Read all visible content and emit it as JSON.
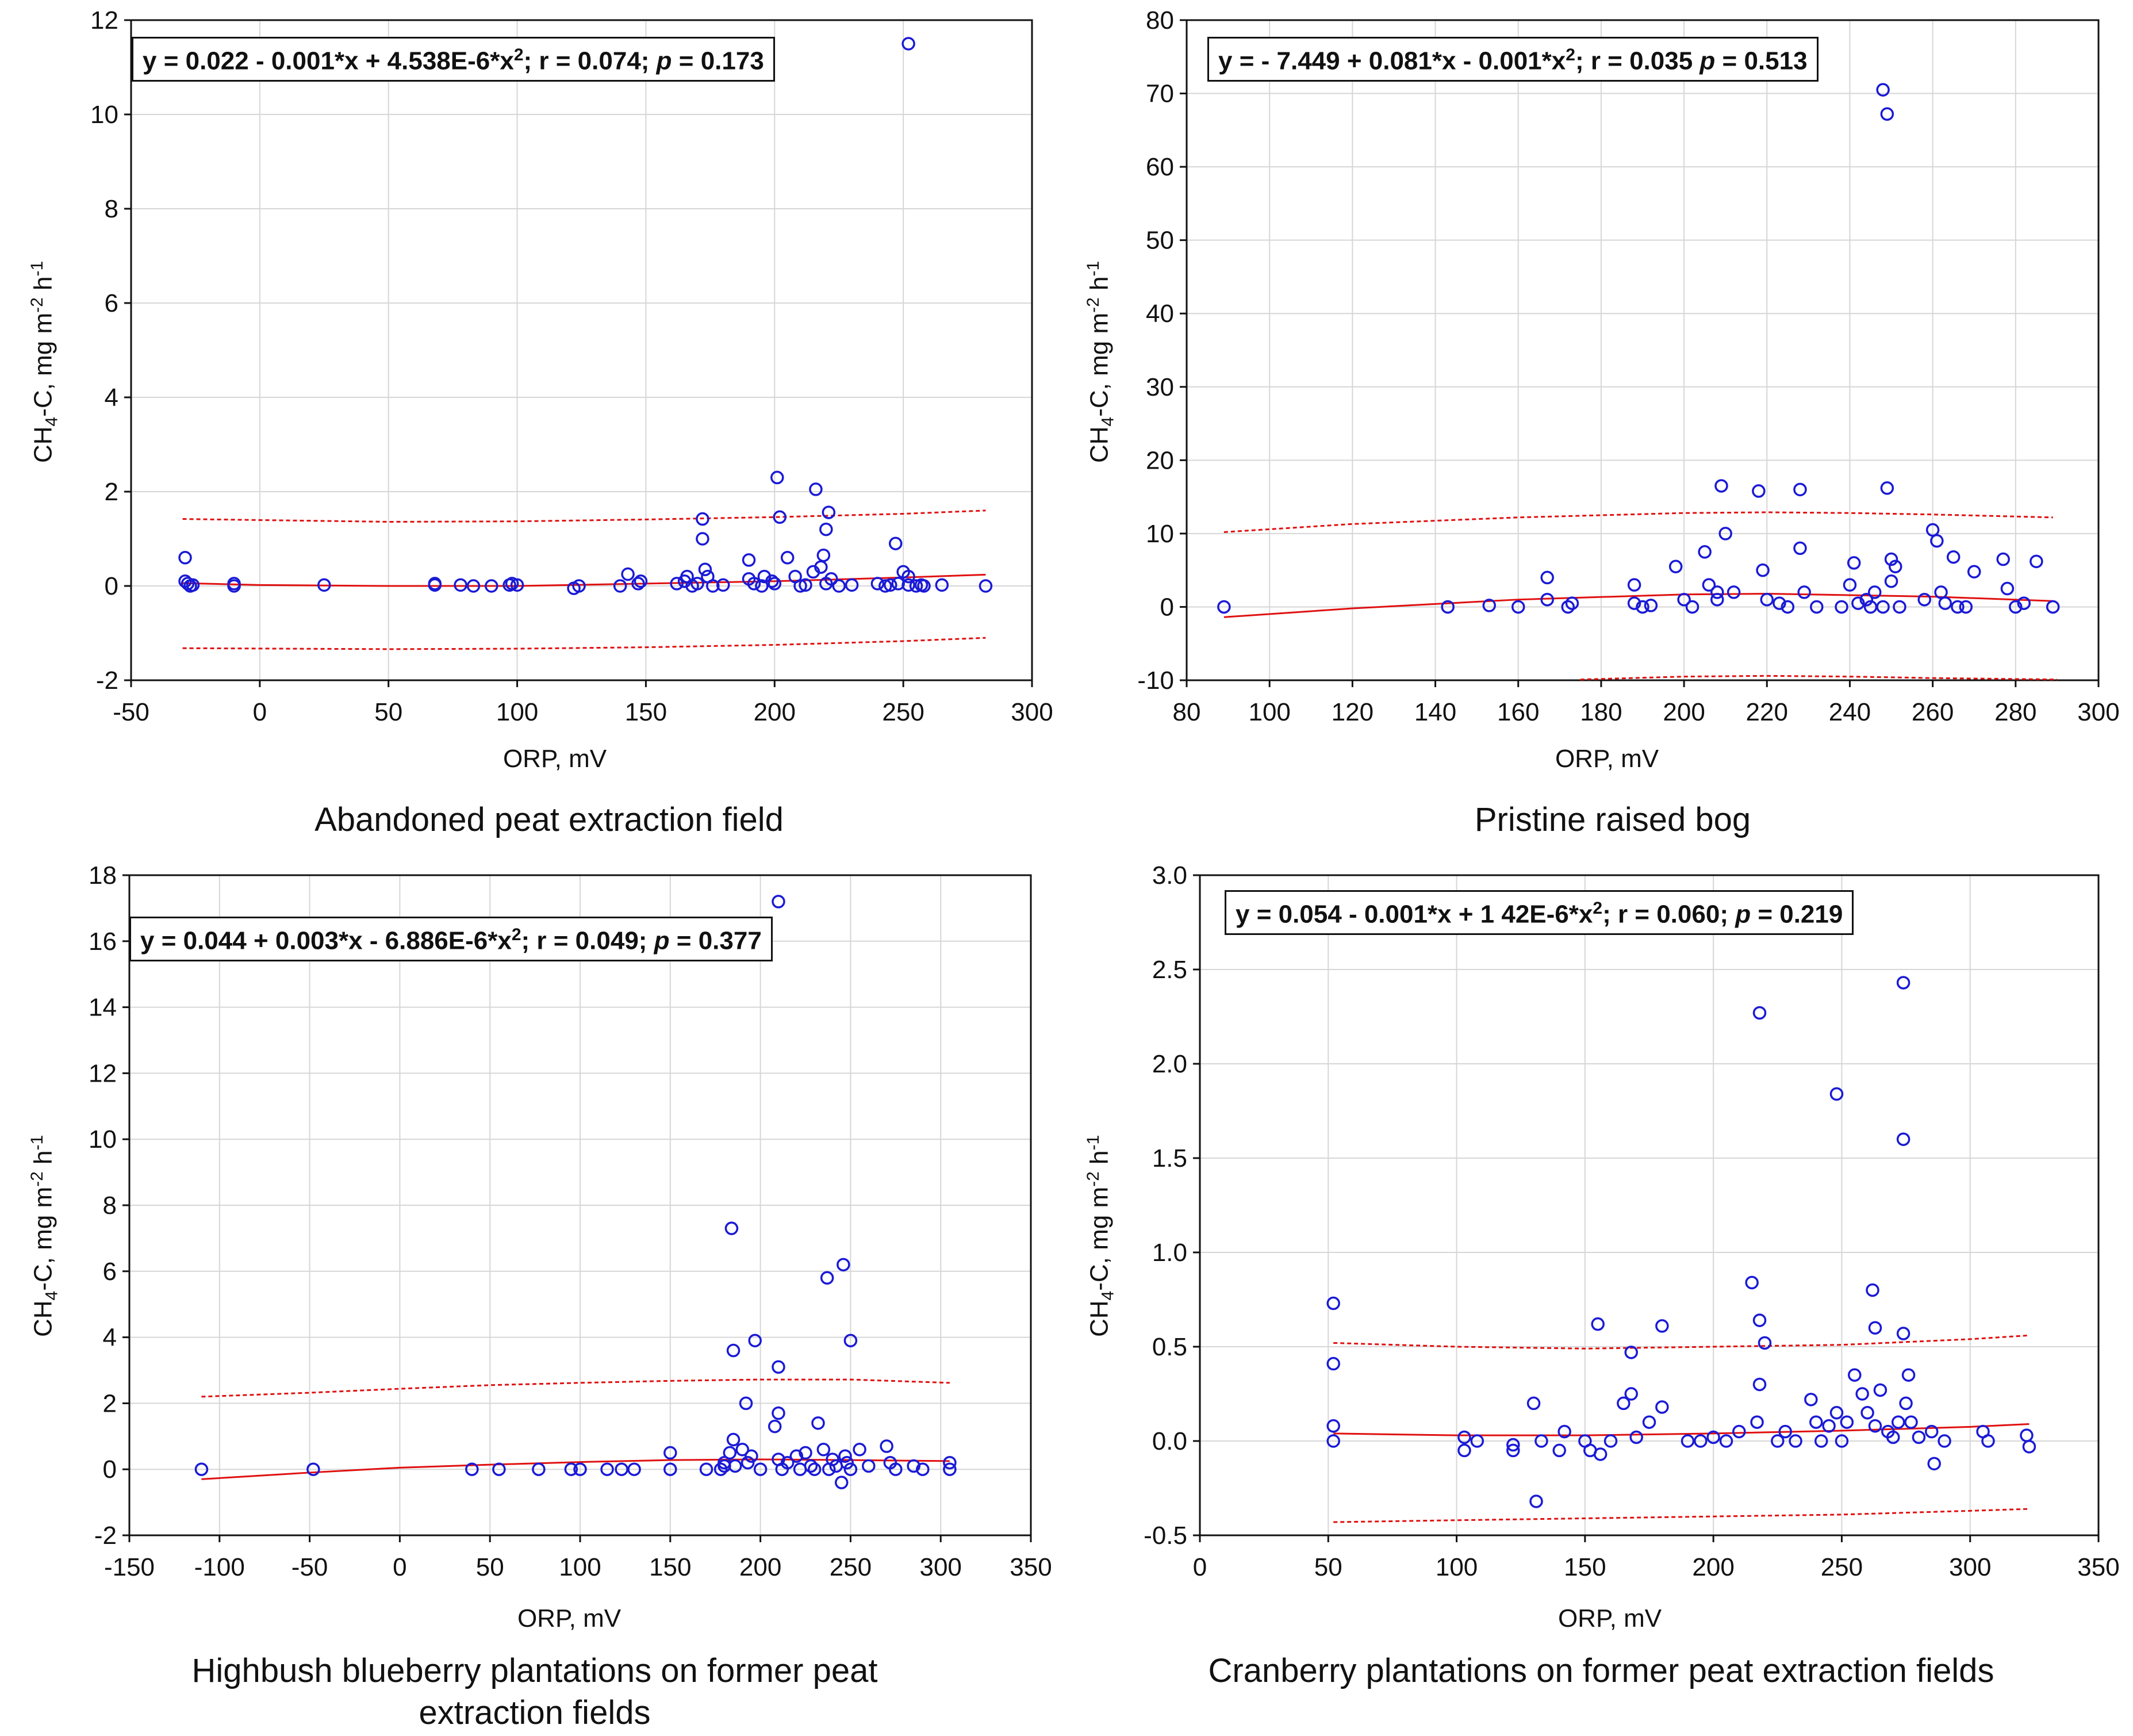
{
  "chart_data": [
    {
      "type": "scatter",
      "caption": "Abandoned peat extraction field",
      "xlabel": "ORP, mV",
      "ylabel": {
        "pre": "CH",
        "sub": "4",
        "mid": "-C, mg m",
        "sup1": "-2",
        "mid2": " h",
        "sup2": "-1"
      },
      "xlim": [
        -50,
        300
      ],
      "ylim": [
        -2,
        12
      ],
      "xticks": [
        -50,
        0,
        50,
        100,
        150,
        200,
        250,
        300
      ],
      "yticks": [
        -2,
        0,
        2,
        4,
        6,
        8,
        10,
        12
      ],
      "equation": {
        "pre": "y = 0.022 - 0.001*x + 4.538E-6*x",
        "sup": "2",
        "mid": "; r = 0.074; ",
        "p": "p",
        "post": " = 0.173"
      },
      "fit": {
        "x": [
          -30,
          0,
          50,
          100,
          150,
          200,
          250,
          282
        ],
        "y": [
          0.06,
          0.02,
          0.0,
          0.0,
          0.05,
          0.1,
          0.18,
          0.24
        ]
      },
      "upper_ci": {
        "x": [
          -30,
          50,
          100,
          150,
          200,
          250,
          282
        ],
        "y": [
          1.42,
          1.36,
          1.37,
          1.41,
          1.46,
          1.53,
          1.6
        ]
      },
      "lower_ci": {
        "x": [
          -30,
          50,
          100,
          150,
          200,
          250,
          282
        ],
        "y": [
          -1.32,
          -1.34,
          -1.33,
          -1.3,
          -1.25,
          -1.17,
          -1.1
        ]
      },
      "points": {
        "x": [
          -29,
          -29,
          -28,
          -27,
          -26,
          -10,
          -10,
          25,
          68,
          68,
          78,
          83,
          90,
          97,
          98,
          100,
          122,
          124,
          140,
          143,
          147,
          148,
          162,
          165,
          166,
          168,
          170,
          172,
          172,
          173,
          174,
          176,
          180,
          190,
          190,
          192,
          195,
          196,
          199,
          200,
          201,
          202,
          205,
          208,
          210,
          212,
          215,
          216,
          218,
          219,
          220,
          220,
          221,
          222,
          225,
          230,
          240,
          243,
          245,
          247,
          248,
          250,
          252,
          252,
          255,
          257,
          258,
          265,
          282,
          252
        ],
        "y": [
          0.6,
          0.1,
          0.05,
          0.0,
          0.02,
          0.05,
          0.0,
          0.02,
          0.02,
          0.05,
          0.02,
          0.0,
          0.0,
          0.02,
          0.05,
          0.02,
          -0.05,
          0.0,
          0.0,
          0.25,
          0.05,
          0.1,
          0.05,
          0.1,
          0.2,
          0.0,
          0.05,
          1.42,
          1.0,
          0.35,
          0.2,
          0.0,
          0.02,
          0.55,
          0.15,
          0.05,
          0.0,
          0.2,
          0.1,
          0.05,
          2.3,
          1.46,
          0.6,
          0.2,
          0.0,
          0.02,
          0.3,
          2.05,
          0.4,
          0.65,
          1.2,
          0.05,
          1.56,
          0.15,
          0.0,
          0.02,
          0.05,
          0.0,
          0.02,
          0.9,
          0.05,
          0.3,
          0.2,
          0.02,
          0.0,
          0.02,
          0.0,
          0.02,
          0.0,
          11.5
        ]
      }
    },
    {
      "type": "scatter",
      "caption": "Pristine raised bog",
      "xlabel": "ORP, mV",
      "ylabel": {
        "pre": "CH",
        "sub": "4",
        "mid": "-C, mg m",
        "sup1": "-2",
        "mid2": " h",
        "sup2": "-1"
      },
      "xlim": [
        80,
        300
      ],
      "ylim": [
        -10,
        80
      ],
      "xticks": [
        80,
        100,
        120,
        140,
        160,
        180,
        200,
        220,
        240,
        260,
        280,
        300
      ],
      "yticks": [
        -10,
        0,
        10,
        20,
        30,
        40,
        50,
        60,
        70,
        80
      ],
      "equation": {
        "pre": "y = - 7.449 + 0.081*x - 0.001*x",
        "sup": "2",
        "mid": "; r = 0.035 ",
        "p": "p",
        "post": " = 0.513"
      },
      "fit": {
        "x": [
          89,
          120,
          160,
          200,
          220,
          240,
          260,
          289
        ],
        "y": [
          -1.4,
          -0.2,
          1.0,
          1.7,
          1.8,
          1.6,
          1.4,
          0.8
        ]
      },
      "upper_ci": {
        "x": [
          89,
          120,
          160,
          200,
          220,
          240,
          260,
          289
        ],
        "y": [
          10.2,
          11.3,
          12.2,
          12.8,
          12.9,
          12.8,
          12.6,
          12.2
        ]
      },
      "lower_ci": {
        "x": [
          175,
          200,
          220,
          240,
          260,
          290
        ],
        "y": [
          -9.9,
          -9.5,
          -9.4,
          -9.5,
          -9.7,
          -9.9
        ]
      },
      "points": {
        "x": [
          89,
          143,
          153,
          160,
          167,
          167,
          172,
          173,
          188,
          188,
          190,
          192,
          198,
          200,
          202,
          205,
          206,
          208,
          208,
          209,
          210,
          212,
          218,
          219,
          220,
          223,
          225,
          228,
          228,
          229,
          232,
          238,
          240,
          241,
          242,
          244,
          245,
          246,
          248,
          249,
          250,
          250,
          251,
          252,
          258,
          260,
          261,
          262,
          263,
          265,
          266,
          268,
          270,
          277,
          278,
          280,
          282,
          285,
          289,
          248,
          249
        ],
        "y": [
          0.0,
          0.0,
          0.2,
          0.0,
          4.0,
          1.0,
          0.0,
          0.5,
          3.0,
          0.5,
          0.0,
          0.2,
          5.5,
          1.0,
          0.0,
          7.5,
          3.0,
          2.0,
          1.0,
          16.5,
          10.0,
          2.0,
          15.8,
          5.0,
          1.0,
          0.5,
          0.0,
          16.0,
          8.0,
          2.0,
          0.0,
          0.0,
          3.0,
          6.0,
          0.5,
          1.0,
          0.0,
          2.0,
          0.0,
          16.2,
          6.5,
          3.5,
          5.5,
          0.0,
          1.0,
          10.5,
          9.0,
          2.0,
          0.5,
          6.8,
          0.0,
          0.0,
          4.8,
          6.5,
          2.5,
          0.0,
          0.5,
          6.2,
          0.0,
          70.5,
          67.2
        ]
      }
    },
    {
      "type": "scatter",
      "caption": "Highbush blueberry plantations on former peat extraction fields",
      "xlabel": "ORP, mV",
      "ylabel": {
        "pre": "CH",
        "sub": "4",
        "mid": "-C, mg m",
        "sup1": "-2",
        "mid2": " h",
        "sup2": "-1"
      },
      "xlim": [
        -150,
        350
      ],
      "ylim": [
        -2,
        18
      ],
      "xticks": [
        -150,
        -100,
        -50,
        0,
        50,
        100,
        150,
        200,
        250,
        300,
        350
      ],
      "yticks": [
        -2,
        0,
        2,
        4,
        6,
        8,
        10,
        12,
        14,
        16,
        18
      ],
      "equation": {
        "pre": "y = 0.044 + 0.003*x - 6.886E-6*x",
        "sup": "2",
        "mid": "; r = 0.049; ",
        "p": "p",
        "post": " = 0.377"
      },
      "fit": {
        "x": [
          -110,
          -50,
          0,
          50,
          100,
          150,
          200,
          250,
          305
        ],
        "y": [
          -0.3,
          -0.1,
          0.05,
          0.14,
          0.22,
          0.28,
          0.3,
          0.28,
          0.25
        ]
      },
      "upper_ci": {
        "x": [
          -110,
          -50,
          0,
          50,
          100,
          150,
          200,
          250,
          305
        ],
        "y": [
          2.2,
          2.32,
          2.44,
          2.55,
          2.62,
          2.68,
          2.72,
          2.72,
          2.62
        ]
      },
      "lower_ci": {
        "x": [],
        "y": []
      },
      "points": {
        "x": [
          -110,
          -48,
          40,
          55,
          77,
          95,
          100,
          115,
          123,
          130,
          150,
          150,
          170,
          178,
          180,
          180,
          183,
          185,
          186,
          190,
          192,
          193,
          195,
          200,
          208,
          210,
          212,
          215,
          220,
          222,
          225,
          228,
          230,
          232,
          235,
          238,
          240,
          242,
          245,
          247,
          248,
          250,
          255,
          260,
          270,
          272,
          275,
          285,
          290,
          305,
          305,
          185,
          197,
          210,
          237,
          246,
          250,
          184,
          210
        ],
        "y": [
          0.0,
          0.0,
          0.0,
          0.0,
          0.0,
          0.0,
          0.0,
          0.0,
          0.0,
          0.0,
          0.5,
          0.0,
          0.0,
          0.0,
          0.1,
          0.2,
          0.5,
          0.9,
          0.1,
          0.6,
          2.0,
          0.2,
          0.4,
          0.0,
          1.3,
          0.3,
          0.0,
          0.2,
          0.4,
          0.0,
          0.5,
          0.1,
          0.0,
          1.4,
          0.6,
          0.0,
          0.3,
          0.1,
          -0.4,
          0.4,
          0.2,
          0.0,
          0.6,
          0.1,
          0.7,
          0.2,
          0.0,
          0.1,
          0.0,
          0.2,
          0.0,
          3.6,
          3.9,
          3.1,
          5.8,
          6.2,
          3.9,
          7.3,
          1.7
        ]
      },
      "outlier": {
        "x": 210,
        "y": 17.2
      }
    },
    {
      "type": "scatter",
      "caption": "Cranberry plantations on former peat extraction fields",
      "xlabel": "ORP, mV",
      "ylabel": {
        "pre": "CH",
        "sub": "4",
        "mid": "-C, mg m",
        "sup1": "-2",
        "mid2": " h",
        "sup2": "-1"
      },
      "xlim": [
        0,
        350
      ],
      "ylim": [
        -0.5,
        3.0
      ],
      "xticks": [
        0,
        50,
        100,
        150,
        200,
        250,
        300,
        350
      ],
      "yticks": [
        -0.5,
        0.0,
        0.5,
        1.0,
        1.5,
        2.0,
        2.5,
        3.0
      ],
      "equation": {
        "pre": "y = 0.054 - 0.001*x + 1 42E-6*x",
        "sup": "2",
        "mid": "; r = 0.060; ",
        "p": "p",
        "post": " = 0.219"
      },
      "fit": {
        "x": [
          52,
          100,
          150,
          200,
          250,
          300,
          323
        ],
        "y": [
          0.04,
          0.03,
          0.03,
          0.04,
          0.055,
          0.075,
          0.09
        ]
      },
      "upper_ci": {
        "x": [
          52,
          100,
          150,
          200,
          250,
          300,
          323
        ],
        "y": [
          0.52,
          0.5,
          0.49,
          0.5,
          0.51,
          0.54,
          0.56
        ]
      },
      "lower_ci": {
        "x": [
          52,
          100,
          150,
          200,
          250,
          300,
          323
        ],
        "y": [
          -0.43,
          -0.42,
          -0.41,
          -0.4,
          -0.39,
          -0.37,
          -0.36
        ]
      },
      "points": {
        "x": [
          52,
          52,
          52,
          52,
          103,
          103,
          108,
          122,
          122,
          130,
          131,
          133,
          140,
          142,
          150,
          152,
          155,
          156,
          160,
          165,
          168,
          168,
          170,
          175,
          180,
          180,
          190,
          195,
          200,
          205,
          210,
          215,
          217,
          218,
          218,
          220,
          225,
          228,
          232,
          238,
          240,
          242,
          245,
          248,
          250,
          252,
          255,
          258,
          260,
          262,
          263,
          263,
          265,
          268,
          270,
          272,
          274,
          275,
          276,
          277,
          280,
          285,
          286,
          290,
          305,
          307,
          322,
          323
        ],
        "y": [
          0.73,
          0.41,
          0.08,
          0.0,
          0.02,
          -0.05,
          0.0,
          -0.02,
          -0.05,
          0.2,
          -0.32,
          0.0,
          -0.05,
          0.05,
          0.0,
          -0.05,
          0.62,
          -0.07,
          0.0,
          0.2,
          0.47,
          0.25,
          0.02,
          0.1,
          0.61,
          0.18,
          0.0,
          0.0,
          0.02,
          0.0,
          0.05,
          0.84,
          0.1,
          0.64,
          0.3,
          0.52,
          0.0,
          0.05,
          0.0,
          0.22,
          0.1,
          0.0,
          0.08,
          0.15,
          0.0,
          0.1,
          0.35,
          0.25,
          0.15,
          0.8,
          0.6,
          0.08,
          0.27,
          0.05,
          0.02,
          0.1,
          0.57,
          0.2,
          0.35,
          0.1,
          0.02,
          0.05,
          -0.12,
          0.0,
          0.05,
          0.0,
          0.03,
          -0.03
        ]
      },
      "outliers": {
        "x": [
          218,
          248,
          274,
          274
        ],
        "y": [
          2.27,
          1.84,
          2.43,
          1.6
        ]
      }
    }
  ],
  "colors": {
    "point": "#1a1ad6",
    "fit": "#e01010",
    "ci": "#e01010",
    "grid": "#d6d6d6",
    "axis": "#111111"
  }
}
